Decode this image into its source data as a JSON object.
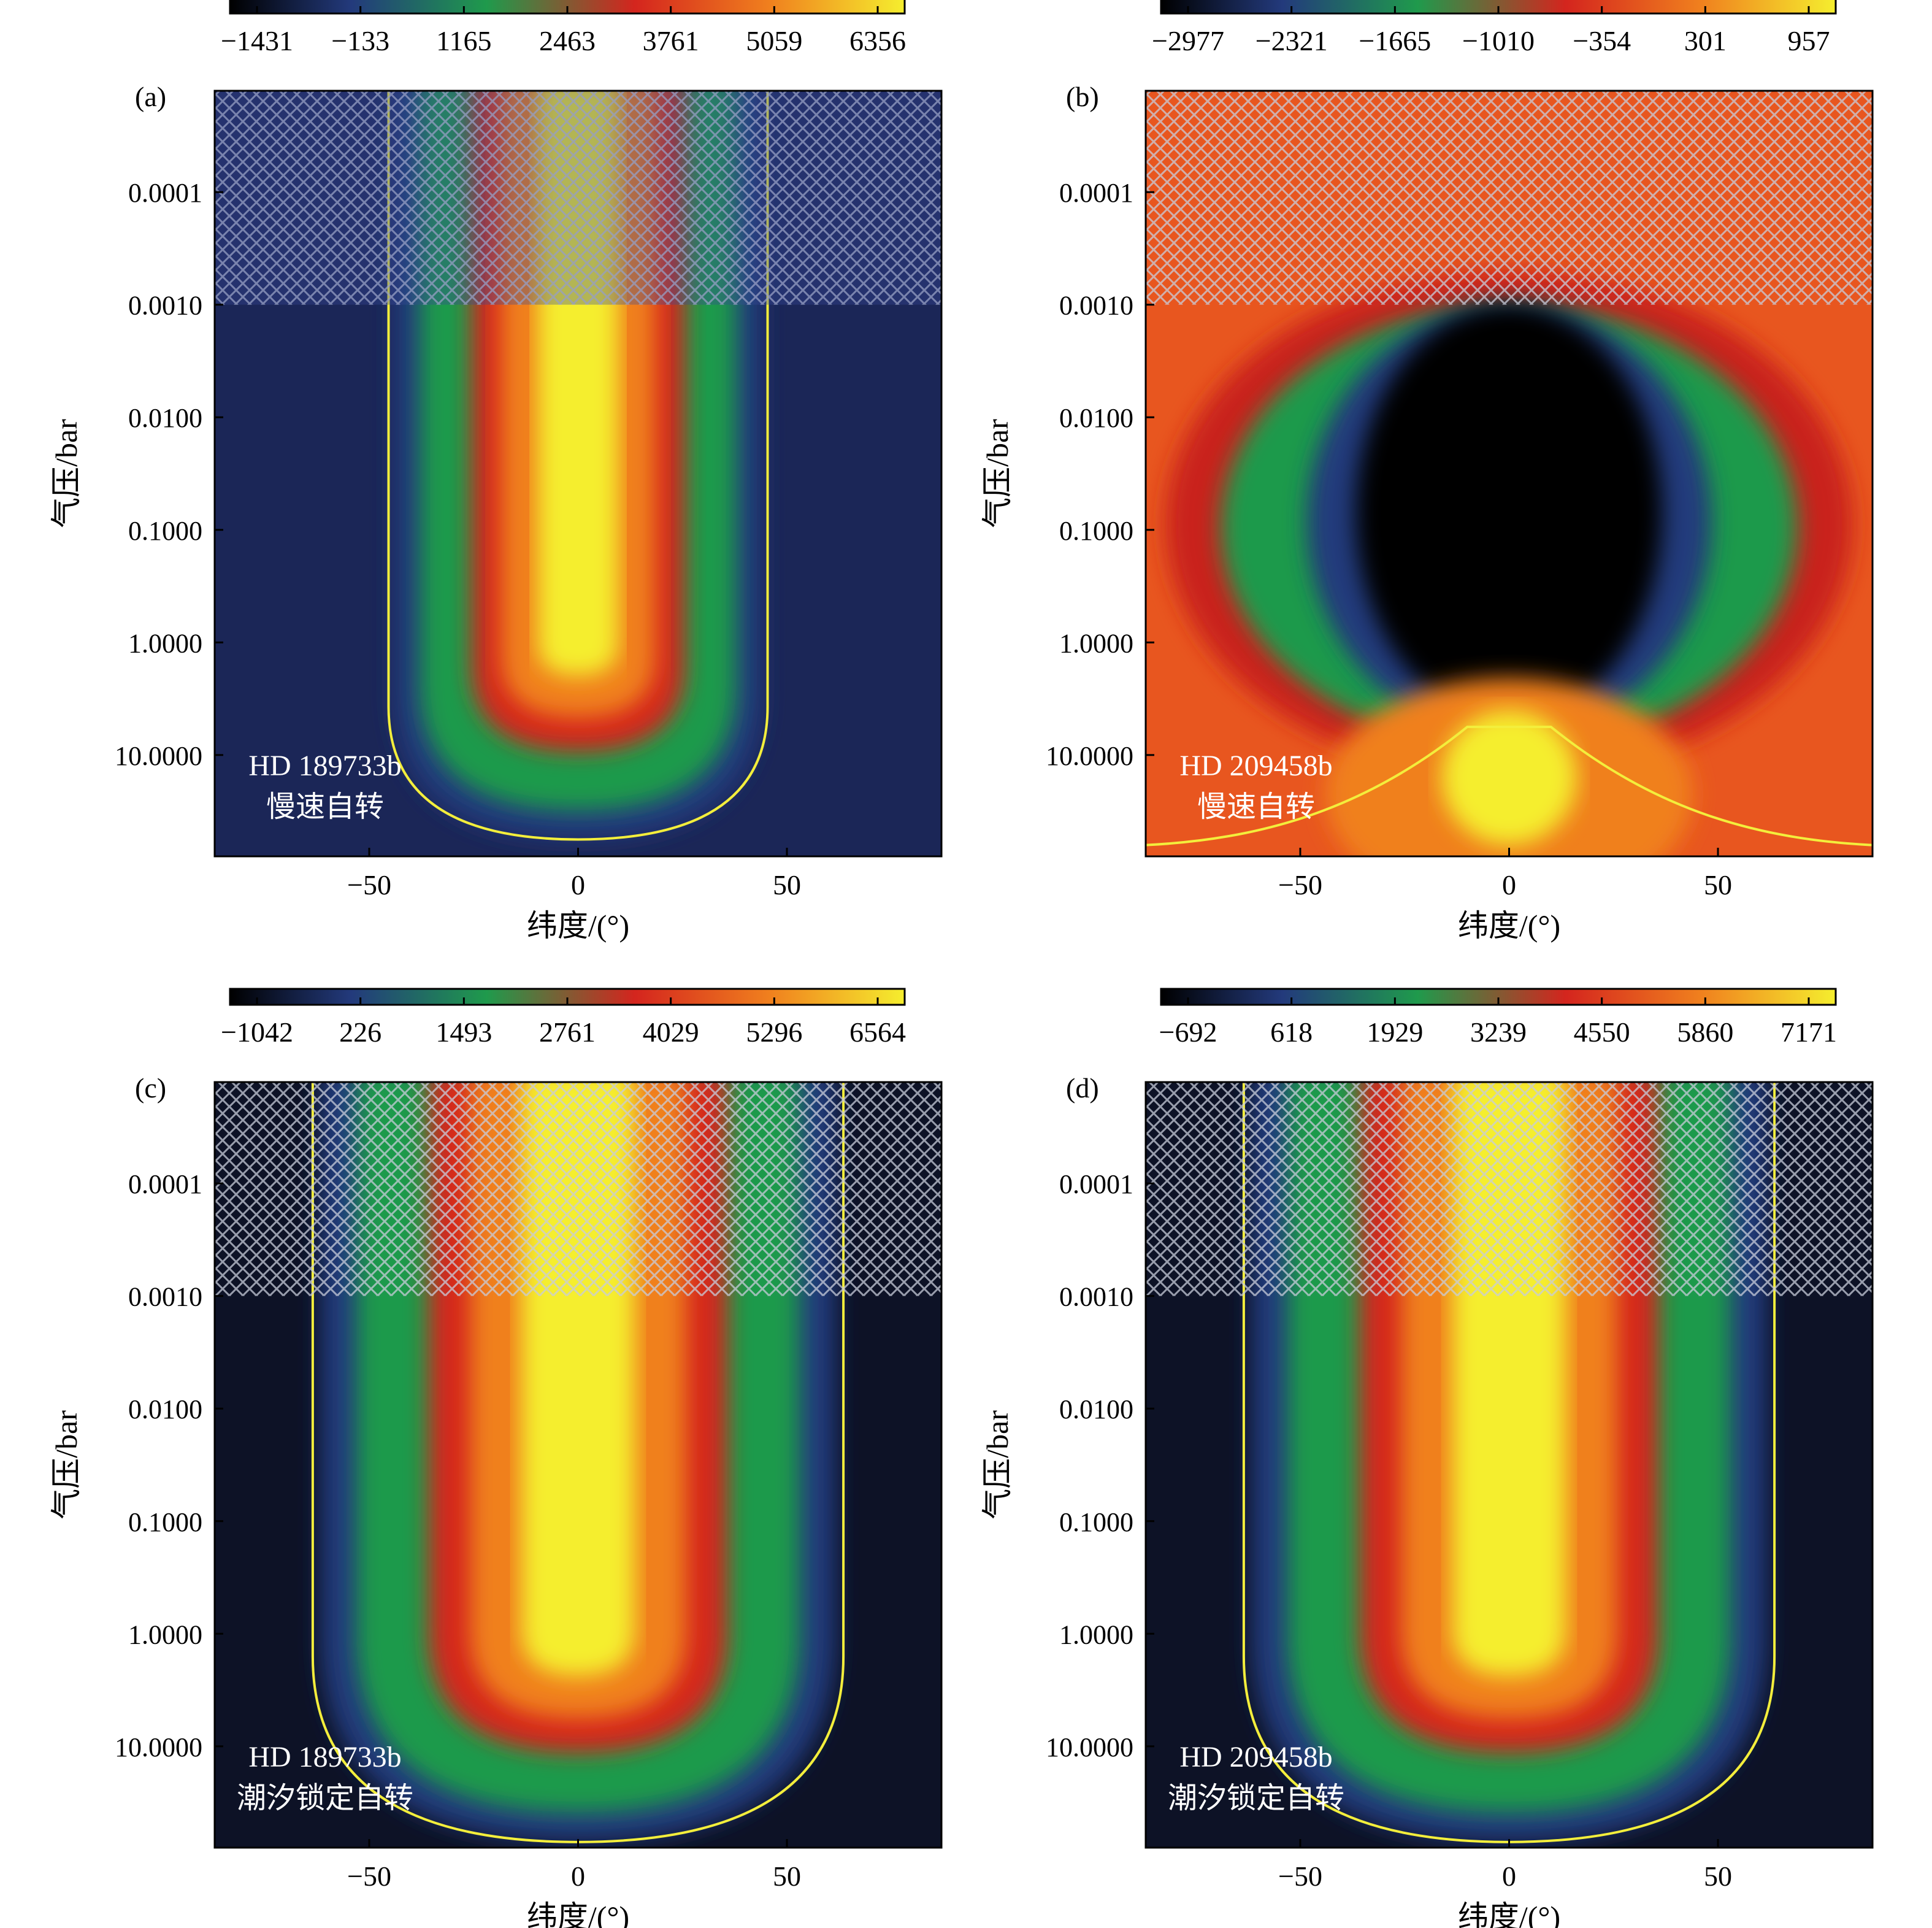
{
  "chart_data": [
    {
      "id": "a",
      "type": "heatmap",
      "panel_label": "(a)",
      "planet": "HD 189733b",
      "rotation": "慢速自转",
      "colorbar_ticks": [
        "−1431",
        "−133",
        "1165",
        "2463",
        "3761",
        "5059",
        "6356"
      ],
      "colorbar_range": [
        -1431,
        6356
      ],
      "xlabel": "纬度/(°)",
      "ylabel": "气压/bar",
      "x_ticks": [
        "−50",
        "0",
        "50"
      ],
      "y_ticks": [
        "0.0001",
        "0.0010",
        "0.0100",
        "0.1000",
        "1.0000",
        "10.0000"
      ],
      "xlim": [
        -87,
        87
      ],
      "ylog_range": [
        -4.9,
        1.9
      ],
      "hatched_above_pressure": 0.001,
      "jet": {
        "core_half_width_deg": 30,
        "core_bottom_log_p": 1.8,
        "hatch_tint": "#3a4a9a"
      }
    },
    {
      "id": "b",
      "type": "heatmap",
      "panel_label": "(b)",
      "planet": "HD 209458b",
      "rotation": "慢速自转",
      "colorbar_ticks": [
        "−2977",
        "−2321",
        "−1665",
        "−1010",
        "−354",
        "301",
        "957"
      ],
      "colorbar_range": [
        -2977,
        957
      ],
      "xlabel": "纬度/(°)",
      "ylabel": "气压/bar",
      "x_ticks": [
        "−50",
        "0",
        "50"
      ],
      "y_ticks": [
        "0.0001",
        "0.0010",
        "0.0100",
        "0.1000",
        "1.0000",
        "10.0000"
      ],
      "xlim": [
        -87,
        87
      ],
      "ylog_range": [
        -4.9,
        1.9
      ]
    },
    {
      "id": "c",
      "type": "heatmap",
      "panel_label": "(c)",
      "planet": "HD 189733b",
      "rotation": "潮汐锁定自转",
      "colorbar_ticks": [
        "−1042",
        "226",
        "1493",
        "2761",
        "4029",
        "5296",
        "6564"
      ],
      "colorbar_range": [
        -1042,
        6564
      ],
      "xlabel": "纬度/(°)",
      "ylabel": "气压/bar",
      "x_ticks": [
        "−50",
        "0",
        "50"
      ],
      "y_ticks": [
        "0.0001",
        "0.0010",
        "0.0100",
        "0.1000",
        "1.0000",
        "10.0000"
      ],
      "xlim": [
        -87,
        87
      ],
      "ylog_range": [
        -4.9,
        1.9
      ]
    },
    {
      "id": "d",
      "type": "heatmap",
      "panel_label": "(d)",
      "planet": "HD 209458b",
      "rotation": "潮汐锁定自转",
      "colorbar_ticks": [
        "−692",
        "618",
        "1929",
        "3239",
        "4550",
        "5860",
        "7171"
      ],
      "colorbar_range": [
        -692,
        7171
      ],
      "xlabel": "纬度/(°)",
      "ylabel": "气压/bar",
      "x_ticks": [
        "−50",
        "0",
        "50"
      ],
      "y_ticks": [
        "0.0001",
        "0.0010",
        "0.0100",
        "0.1000",
        "1.0000",
        "10.0000"
      ],
      "xlim": [
        -87,
        87
      ],
      "ylog_range": [
        -4.9,
        1.9
      ]
    }
  ],
  "colors": {
    "contour": "#f3ee3c",
    "hatch": "#c8ccda",
    "colormap": [
      "#000000",
      "#233a7c",
      "#1f9a4c",
      "#d4251e",
      "#f0801e",
      "#f5ee2e"
    ]
  }
}
